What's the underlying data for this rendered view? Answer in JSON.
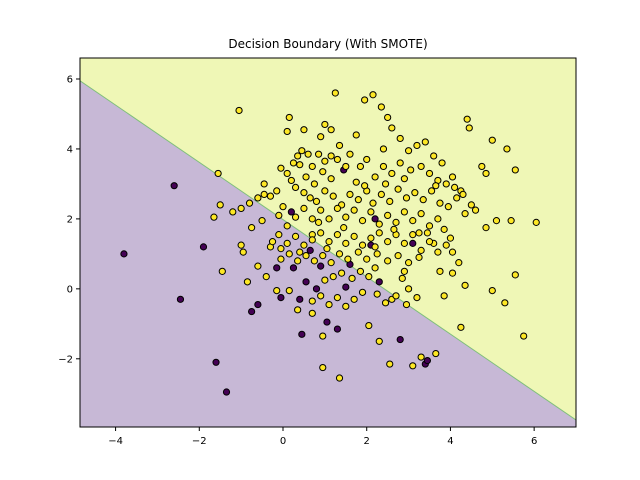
{
  "chart_data": {
    "type": "scatter",
    "title": "Decision Boundary (With SMOTE)",
    "xlabel": "",
    "ylabel": "",
    "xlim": [
      -4.85,
      7.0
    ],
    "ylim": [
      -3.95,
      6.6
    ],
    "xticks": [
      -4,
      -2,
      0,
      2,
      4,
      6
    ],
    "yticks": [
      -2,
      0,
      2,
      4,
      6
    ],
    "xtick_labels": [
      "−4",
      "−2",
      "0",
      "2",
      "4",
      "6"
    ],
    "ytick_labels": [
      "−2",
      "0",
      "2",
      "4",
      "6"
    ],
    "grid": false,
    "regions": {
      "boundary_line": {
        "x": [
          -4.85,
          7.0
        ],
        "y": [
          5.95,
          -3.75
        ]
      },
      "above_color": "#eff7b6",
      "below_color": "#c7b8d6",
      "boundary_color": "#7fbf7b"
    },
    "series": [
      {
        "class": 0,
        "color": "#440154",
        "points": [
          [
            -3.8,
            1.0
          ],
          [
            -2.6,
            2.95
          ],
          [
            -2.45,
            -0.3
          ],
          [
            -1.9,
            1.2
          ],
          [
            -1.6,
            -2.1
          ],
          [
            -1.35,
            -2.95
          ],
          [
            -0.75,
            -0.65
          ],
          [
            -0.6,
            -0.45
          ],
          [
            -0.15,
            0.6
          ],
          [
            -0.05,
            -0.25
          ],
          [
            0.2,
            2.2
          ],
          [
            0.25,
            0.6
          ],
          [
            0.4,
            -0.3
          ],
          [
            0.45,
            -1.3
          ],
          [
            0.55,
            0.2
          ],
          [
            0.65,
            1.1
          ],
          [
            0.9,
            0.65
          ],
          [
            1.05,
            -0.95
          ],
          [
            1.3,
            -1.15
          ],
          [
            1.45,
            3.4
          ],
          [
            1.5,
            0.05
          ],
          [
            1.6,
            0.7
          ],
          [
            2.1,
            1.25
          ],
          [
            2.2,
            2.0
          ],
          [
            2.8,
            -1.45
          ],
          [
            3.1,
            1.3
          ],
          [
            3.4,
            -2.15
          ],
          [
            3.45,
            -2.05
          ],
          [
            2.3,
            0.2
          ],
          [
            0.8,
            0.0
          ]
        ]
      },
      {
        "class": 1,
        "color": "#fde725",
        "points": [
          [
            -1.05,
            5.1
          ],
          [
            -0.45,
            3.0
          ],
          [
            -0.6,
            0.65
          ],
          [
            -0.3,
            1.2
          ],
          [
            -0.15,
            -0.05
          ],
          [
            0.0,
            2.35
          ],
          [
            0.1,
            4.5
          ],
          [
            0.15,
            4.9
          ],
          [
            0.35,
            3.8
          ],
          [
            0.5,
            4.55
          ],
          [
            0.6,
            3.85
          ],
          [
            0.7,
            1.55
          ],
          [
            0.75,
            3.0
          ],
          [
            0.9,
            4.35
          ],
          [
            1.0,
            4.7
          ],
          [
            1.15,
            4.55
          ],
          [
            1.25,
            5.6
          ],
          [
            1.35,
            4.1
          ],
          [
            1.5,
            3.5
          ],
          [
            1.75,
            4.4
          ],
          [
            1.95,
            5.4
          ],
          [
            2.15,
            5.55
          ],
          [
            2.35,
            5.2
          ],
          [
            2.5,
            4.9
          ],
          [
            2.6,
            4.6
          ],
          [
            2.4,
            4.0
          ],
          [
            2.8,
            4.3
          ],
          [
            3.0,
            3.95
          ],
          [
            3.2,
            4.1
          ],
          [
            3.4,
            4.2
          ],
          [
            3.6,
            3.8
          ],
          [
            3.8,
            3.6
          ],
          [
            4.05,
            3.2
          ],
          [
            4.25,
            2.8
          ],
          [
            4.4,
            4.85
          ],
          [
            4.45,
            4.6
          ],
          [
            4.6,
            2.25
          ],
          [
            4.75,
            3.5
          ],
          [
            4.85,
            3.3
          ],
          [
            5.0,
            4.25
          ],
          [
            5.35,
            4.0
          ],
          [
            5.55,
            3.4
          ],
          [
            5.1,
            1.95
          ],
          [
            5.45,
            1.95
          ],
          [
            6.05,
            1.9
          ],
          [
            4.85,
            1.75
          ],
          [
            5.0,
            -0.05
          ],
          [
            5.3,
            -0.4
          ],
          [
            5.55,
            0.4
          ],
          [
            5.75,
            -1.35
          ],
          [
            4.25,
            -1.1
          ],
          [
            3.85,
            -0.2
          ],
          [
            3.75,
            0.5
          ],
          [
            3.6,
            1.3
          ],
          [
            3.25,
            1.6
          ],
          [
            2.85,
            0.3
          ],
          [
            2.9,
            0.5
          ],
          [
            3.0,
            0.0
          ],
          [
            2.6,
            -0.3
          ],
          [
            2.2,
            0.6
          ],
          [
            2.05,
            -1.05
          ],
          [
            2.3,
            -1.5
          ],
          [
            2.55,
            -2.15
          ],
          [
            3.1,
            -2.2
          ],
          [
            3.3,
            -1.95
          ],
          [
            3.65,
            -1.85
          ],
          [
            1.35,
            -2.55
          ],
          [
            0.95,
            -2.25
          ],
          [
            0.95,
            -1.35
          ],
          [
            0.7,
            -0.7
          ],
          [
            0.35,
            -0.6
          ],
          [
            0.15,
            -0.05
          ],
          [
            -0.05,
            0.85
          ],
          [
            -0.4,
            0.35
          ],
          [
            -0.85,
            0.2
          ],
          [
            -1.45,
            0.5
          ],
          [
            -1.65,
            2.05
          ],
          [
            -1.5,
            2.4
          ],
          [
            -1.2,
            2.2
          ],
          [
            -1.0,
            2.3
          ],
          [
            -0.8,
            2.45
          ],
          [
            -0.6,
            2.6
          ],
          [
            -0.45,
            2.7
          ],
          [
            -0.3,
            2.65
          ],
          [
            -0.15,
            2.8
          ],
          [
            -1.55,
            3.3
          ],
          [
            -0.05,
            3.45
          ],
          [
            0.1,
            3.3
          ],
          [
            0.25,
            3.6
          ],
          [
            0.4,
            3.55
          ],
          [
            0.55,
            3.2
          ],
          [
            0.7,
            3.5
          ],
          [
            0.85,
            3.85
          ],
          [
            1.0,
            3.65
          ],
          [
            1.15,
            3.8
          ],
          [
            1.3,
            3.7
          ],
          [
            1.6,
            3.85
          ],
          [
            1.85,
            3.5
          ],
          [
            2.0,
            3.7
          ],
          [
            2.2,
            3.2
          ],
          [
            2.4,
            3.5
          ],
          [
            2.6,
            3.3
          ],
          [
            2.8,
            3.6
          ],
          [
            3.05,
            3.4
          ],
          [
            3.3,
            3.5
          ],
          [
            3.5,
            3.3
          ],
          [
            3.7,
            3.1
          ],
          [
            3.9,
            3.0
          ],
          [
            4.1,
            2.9
          ],
          [
            4.3,
            2.7
          ],
          [
            0.3,
            2.9
          ],
          [
            0.5,
            2.75
          ],
          [
            0.65,
            2.6
          ],
          [
            0.8,
            2.5
          ],
          [
            1.0,
            2.8
          ],
          [
            1.2,
            2.65
          ],
          [
            1.4,
            2.4
          ],
          [
            1.6,
            2.7
          ],
          [
            1.8,
            2.55
          ],
          [
            2.0,
            2.8
          ],
          [
            2.15,
            2.45
          ],
          [
            2.35,
            2.7
          ],
          [
            2.55,
            2.5
          ],
          [
            2.75,
            2.85
          ],
          [
            2.95,
            2.6
          ],
          [
            3.15,
            2.75
          ],
          [
            3.35,
            2.55
          ],
          [
            3.55,
            2.8
          ],
          [
            3.75,
            2.45
          ],
          [
            3.95,
            2.35
          ],
          [
            4.15,
            2.6
          ],
          [
            4.35,
            2.15
          ],
          [
            4.5,
            2.4
          ],
          [
            3.7,
            2.0
          ],
          [
            3.5,
            1.8
          ],
          [
            3.3,
            2.15
          ],
          [
            3.1,
            1.95
          ],
          [
            2.9,
            2.2
          ],
          [
            2.7,
            1.9
          ],
          [
            2.5,
            2.1
          ],
          [
            2.3,
            1.85
          ],
          [
            2.1,
            2.2
          ],
          [
            1.9,
            1.95
          ],
          [
            1.7,
            2.25
          ],
          [
            1.5,
            2.05
          ],
          [
            1.3,
            2.3
          ],
          [
            1.1,
            2.0
          ],
          [
            0.9,
            2.25
          ],
          [
            0.7,
            2.0
          ],
          [
            0.5,
            2.3
          ],
          [
            0.3,
            2.05
          ],
          [
            0.1,
            1.8
          ],
          [
            -0.1,
            1.55
          ],
          [
            0.1,
            1.3
          ],
          [
            0.3,
            1.5
          ],
          [
            0.5,
            1.25
          ],
          [
            0.7,
            1.4
          ],
          [
            0.9,
            1.6
          ],
          [
            1.1,
            1.35
          ],
          [
            1.3,
            1.55
          ],
          [
            1.5,
            1.3
          ],
          [
            1.7,
            1.5
          ],
          [
            1.9,
            1.25
          ],
          [
            2.1,
            1.45
          ],
          [
            2.3,
            1.6
          ],
          [
            2.5,
            1.35
          ],
          [
            2.7,
            1.55
          ],
          [
            2.9,
            1.3
          ],
          [
            3.1,
            1.55
          ],
          [
            3.3,
            1.1
          ],
          [
            3.5,
            1.35
          ],
          [
            3.7,
            1.05
          ],
          [
            3.9,
            1.25
          ],
          [
            4.05,
            1.05
          ],
          [
            4.2,
            0.75
          ],
          [
            4.05,
            0.45
          ],
          [
            4.35,
            0.1
          ],
          [
            3.25,
            0.9
          ],
          [
            3.0,
            0.75
          ],
          [
            2.75,
            0.95
          ],
          [
            2.5,
            0.8
          ],
          [
            2.25,
            1.0
          ],
          [
            2.0,
            0.85
          ],
          [
            1.8,
            1.05
          ],
          [
            1.55,
            0.85
          ],
          [
            1.35,
            1.0
          ],
          [
            1.15,
            0.75
          ],
          [
            0.95,
            0.95
          ],
          [
            0.75,
            0.8
          ],
          [
            0.55,
            0.95
          ],
          [
            0.35,
            0.8
          ],
          [
            0.15,
            1.0
          ],
          [
            -0.05,
            1.15
          ],
          [
            1.2,
            0.35
          ],
          [
            1.0,
            0.25
          ],
          [
            1.4,
            0.45
          ],
          [
            1.65,
            0.3
          ],
          [
            1.85,
            0.5
          ],
          [
            2.05,
            0.35
          ],
          [
            1.9,
            -0.1
          ],
          [
            1.7,
            -0.3
          ],
          [
            1.5,
            -0.5
          ],
          [
            1.3,
            -0.25
          ],
          [
            1.1,
            -0.45
          ],
          [
            0.9,
            -0.2
          ],
          [
            0.7,
            -0.35
          ],
          [
            2.25,
            -0.15
          ],
          [
            2.45,
            -0.4
          ],
          [
            2.7,
            -0.2
          ],
          [
            2.95,
            -0.45
          ],
          [
            3.2,
            -0.25
          ],
          [
            0.2,
            3.1
          ],
          [
            -0.1,
            2.1
          ],
          [
            -0.25,
            1.35
          ],
          [
            -0.5,
            1.95
          ],
          [
            -0.75,
            1.75
          ],
          [
            -0.95,
            1.05
          ],
          [
            -1.0,
            1.25
          ],
          [
            0.85,
            1.9
          ],
          [
            1.45,
            1.75
          ],
          [
            2.65,
            1.7
          ],
          [
            3.85,
            1.7
          ],
          [
            4.0,
            1.45
          ],
          [
            3.45,
            1.6
          ],
          [
            2.2,
            1.2
          ],
          [
            1.05,
            1.15
          ],
          [
            0.4,
            1.05
          ],
          [
            2.45,
            3.0
          ],
          [
            1.75,
            3.05
          ],
          [
            1.15,
            3.15
          ],
          [
            3.65,
            2.95
          ],
          [
            2.9,
            3.15
          ],
          [
            1.95,
            2.95
          ],
          [
            0.95,
            3.35
          ],
          [
            0.45,
            3.95
          ]
        ]
      }
    ]
  }
}
